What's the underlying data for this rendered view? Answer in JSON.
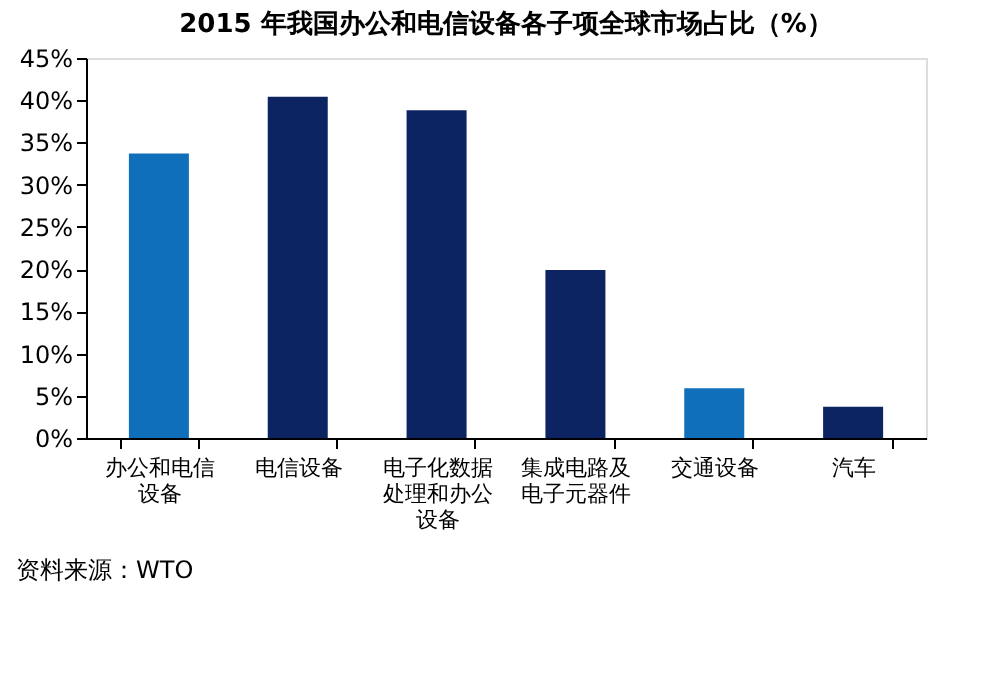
{
  "chart_data": {
    "type": "bar",
    "title": "2015 年我国办公和电信设备各子项全球市场占比（%）",
    "categories": [
      "办公和电信设备",
      "电信设备",
      "电子化数据处理和办公设备",
      "集成电路及电子元器件",
      "交通设备",
      "汽车"
    ],
    "values": [
      33.7,
      40.4,
      38.8,
      19.9,
      5.9,
      3.7
    ],
    "colors": [
      "#0f6fba",
      "#0c2461",
      "#0c2461",
      "#0c2461",
      "#0f6fba",
      "#0c2461"
    ],
    "ylim": [
      0,
      45
    ],
    "yticks": [
      {
        "value": 0,
        "label": "0%"
      },
      {
        "value": 5,
        "label": "5%"
      },
      {
        "value": 10,
        "label": "10%"
      },
      {
        "value": 15,
        "label": "15%"
      },
      {
        "value": 20,
        "label": "20%"
      },
      {
        "value": 25,
        "label": "25%"
      },
      {
        "value": 30,
        "label": "30%"
      },
      {
        "value": 35,
        "label": "35%"
      },
      {
        "value": 40,
        "label": "40%"
      },
      {
        "value": 45,
        "label": "45%"
      }
    ],
    "grid": false,
    "annotations": [
      "资料来源：WTO"
    ]
  }
}
